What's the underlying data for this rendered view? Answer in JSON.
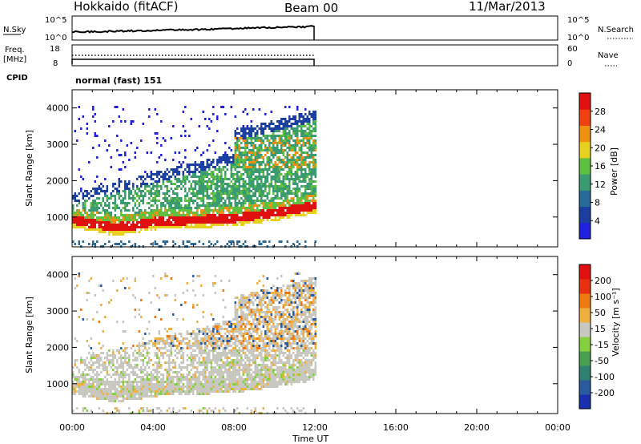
{
  "header": {
    "station": "Hokkaido (fitACF)",
    "beam": "Beam 00",
    "date": "11/Mar/2013"
  },
  "top_panels": {
    "noise_left_label": "N.Sky",
    "noise_left_ticks": [
      "10^5",
      "10^0"
    ],
    "noise_right_ticks": [
      "10^5",
      "10^0"
    ],
    "noise_right_label": "N.Search",
    "freq_label_1": "Freq.",
    "freq_label_2": "[MHz]",
    "freq_ticks": [
      "18",
      "8"
    ],
    "nave_ticks": [
      "60",
      "0"
    ],
    "nave_label": "Nave",
    "cpid_label": "CPID",
    "cpid_value": "normal (fast) 151"
  },
  "axes": {
    "x_ticks": [
      "00:00",
      "04:00",
      "08:00",
      "12:00",
      "16:00",
      "20:00",
      "00:00"
    ],
    "x_label": "Time UT",
    "y_label": "Slant Range [km]",
    "y_ticks": [
      "1000",
      "2000",
      "3000",
      "4000"
    ]
  },
  "power_colorbar": {
    "label": "Power [dB]",
    "ticks": [
      "28",
      "24",
      "20",
      "16",
      "12",
      "8",
      "4"
    ],
    "colors": [
      "#2020e0",
      "#1a3fa0",
      "#2a6a99",
      "#3a9a70",
      "#5ec040",
      "#e8d020",
      "#f09010",
      "#f04010",
      "#e01010"
    ]
  },
  "velocity_colorbar": {
    "label": "Velocity [m s⁻¹]",
    "ticks": [
      "200",
      "100",
      "50",
      "15",
      "-15",
      "-50",
      "-100",
      "-200"
    ],
    "colors": [
      "#1a2fb0",
      "#2a5aa0",
      "#2f8070",
      "#4aa050",
      "#86d040",
      "#c8c8c0",
      "#f0b040",
      "#f07a10",
      "#e83010",
      "#e01010"
    ]
  },
  "chart_data": {
    "type": "heatmap",
    "x_range_hours": [
      0,
      24
    ],
    "y_range_km": [
      180,
      4500
    ],
    "data_extent_hours": [
      0,
      12
    ],
    "noise_level_trend": [
      {
        "t": 0,
        "level": "low"
      },
      {
        "t": 6,
        "level": "medium"
      },
      {
        "t": 9,
        "level": "medium-high"
      },
      {
        "t": 12,
        "level": "high"
      }
    ],
    "frequency_mhz": 10,
    "power_panel": {
      "strong_echo_band": [
        {
          "t": 0,
          "range_km": 950
        },
        {
          "t": 1,
          "range_km": 850
        },
        {
          "t": 2,
          "range_km": 750
        },
        {
          "t": 3,
          "range_km": 800
        },
        {
          "t": 4,
          "range_km": 900
        },
        {
          "t": 6,
          "range_km": 950
        },
        {
          "t": 8,
          "range_km": 1000
        },
        {
          "t": 10,
          "range_km": 1150
        },
        {
          "t": 12,
          "range_km": 1350
        }
      ],
      "scatter_region_km": [
        300,
        4000
      ]
    },
    "velocity_panel": {
      "dominant_bin": "-15 to 15",
      "secondary_bin": "-15 to -50"
    }
  }
}
